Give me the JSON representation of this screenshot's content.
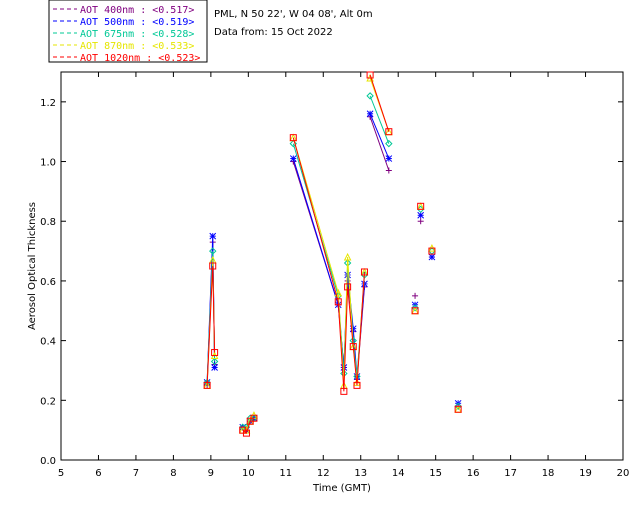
{
  "header": {
    "location": "PML, N 50 22', W 04 08', Alt 0m",
    "date_line": "Data from: 15 Oct 2022"
  },
  "chart_data": {
    "type": "scatter",
    "xlabel": "Time (GMT)",
    "ylabel": "Aerosol Optical Thickness",
    "xlim": [
      5,
      20
    ],
    "ylim": [
      0,
      1.3
    ],
    "x_ticks": [
      5,
      6,
      7,
      8,
      9,
      10,
      11,
      12,
      13,
      14,
      15,
      16,
      17,
      18,
      19,
      20
    ],
    "y_ticks": [
      0.0,
      0.2,
      0.4,
      0.6,
      0.8,
      1.0,
      1.2
    ],
    "y_tick_labels": [
      "0.0",
      "0.2",
      "0.4",
      "0.6",
      "0.8",
      "1.0",
      "1.2"
    ],
    "legend_position": "top-left",
    "segments": [
      [
        0,
        2
      ],
      [
        3,
        5
      ],
      [
        7,
        13
      ],
      [
        14,
        15
      ]
    ],
    "series": [
      {
        "name": "AOT  400nm : <0.517>",
        "color": "#800080",
        "marker": "plus",
        "x": [
          8.9,
          9.05,
          9.1,
          9.85,
          9.95,
          10.05,
          10.15,
          11.2,
          12.4,
          12.55,
          12.65,
          12.8,
          12.9,
          13.1,
          13.25,
          13.75,
          14.45,
          14.6,
          14.9,
          15.6
        ],
        "y": [
          0.25,
          0.73,
          0.32,
          0.11,
          0.1,
          0.13,
          0.14,
          1.0,
          0.52,
          0.31,
          0.6,
          0.43,
          0.27,
          0.58,
          1.15,
          0.97,
          0.55,
          0.8,
          0.68,
          0.18
        ]
      },
      {
        "name": "AOT  500nm : <0.519>",
        "color": "#0000ff",
        "marker": "star",
        "x": [
          8.9,
          9.05,
          9.1,
          9.85,
          9.95,
          10.05,
          10.15,
          11.2,
          12.4,
          12.55,
          12.65,
          12.8,
          12.9,
          13.1,
          13.25,
          13.75,
          14.45,
          14.6,
          14.9,
          15.6
        ],
        "y": [
          0.26,
          0.75,
          0.31,
          0.11,
          0.1,
          0.13,
          0.14,
          1.01,
          0.52,
          0.31,
          0.62,
          0.44,
          0.28,
          0.59,
          1.16,
          1.01,
          0.52,
          0.82,
          0.68,
          0.19
        ]
      },
      {
        "name": "AOT  675nm : <0.528>",
        "color": "#00c896",
        "marker": "diamond",
        "x": [
          8.9,
          9.05,
          9.1,
          9.85,
          9.95,
          10.05,
          10.15,
          11.2,
          12.4,
          12.55,
          12.65,
          12.8,
          12.9,
          13.1,
          13.25,
          13.75,
          14.45,
          14.6,
          14.9,
          15.6
        ],
        "y": [
          0.26,
          0.7,
          0.33,
          0.11,
          0.11,
          0.14,
          0.14,
          1.06,
          0.55,
          0.29,
          0.66,
          0.4,
          0.28,
          0.62,
          1.22,
          1.06,
          0.51,
          0.84,
          0.7,
          0.18
        ]
      },
      {
        "name": "AOT  870nm : <0.533>",
        "color": "#e6e600",
        "marker": "triangle",
        "x": [
          8.9,
          9.05,
          9.1,
          9.85,
          9.95,
          10.05,
          10.15,
          11.2,
          12.4,
          12.55,
          12.65,
          12.8,
          12.9,
          13.1,
          13.25,
          13.75,
          14.45,
          14.6,
          14.9,
          15.6
        ],
        "y": [
          0.25,
          0.67,
          0.35,
          0.1,
          0.1,
          0.13,
          0.15,
          1.08,
          0.56,
          0.25,
          0.68,
          0.38,
          0.26,
          0.63,
          1.28,
          1.1,
          0.5,
          0.85,
          0.71,
          0.17
        ]
      },
      {
        "name": "AOT 1020nm : <0.523>",
        "color": "#ff0000",
        "marker": "square",
        "x": [
          8.9,
          9.05,
          9.1,
          9.85,
          9.95,
          10.05,
          10.15,
          11.2,
          12.4,
          12.55,
          12.65,
          12.8,
          12.9,
          13.1,
          13.25,
          13.75,
          14.45,
          14.6,
          14.9,
          15.6
        ],
        "y": [
          0.25,
          0.65,
          0.36,
          0.1,
          0.09,
          0.13,
          0.14,
          1.08,
          0.53,
          0.23,
          0.58,
          0.38,
          0.25,
          0.63,
          1.29,
          1.1,
          0.5,
          0.85,
          0.7,
          0.17
        ]
      }
    ]
  }
}
